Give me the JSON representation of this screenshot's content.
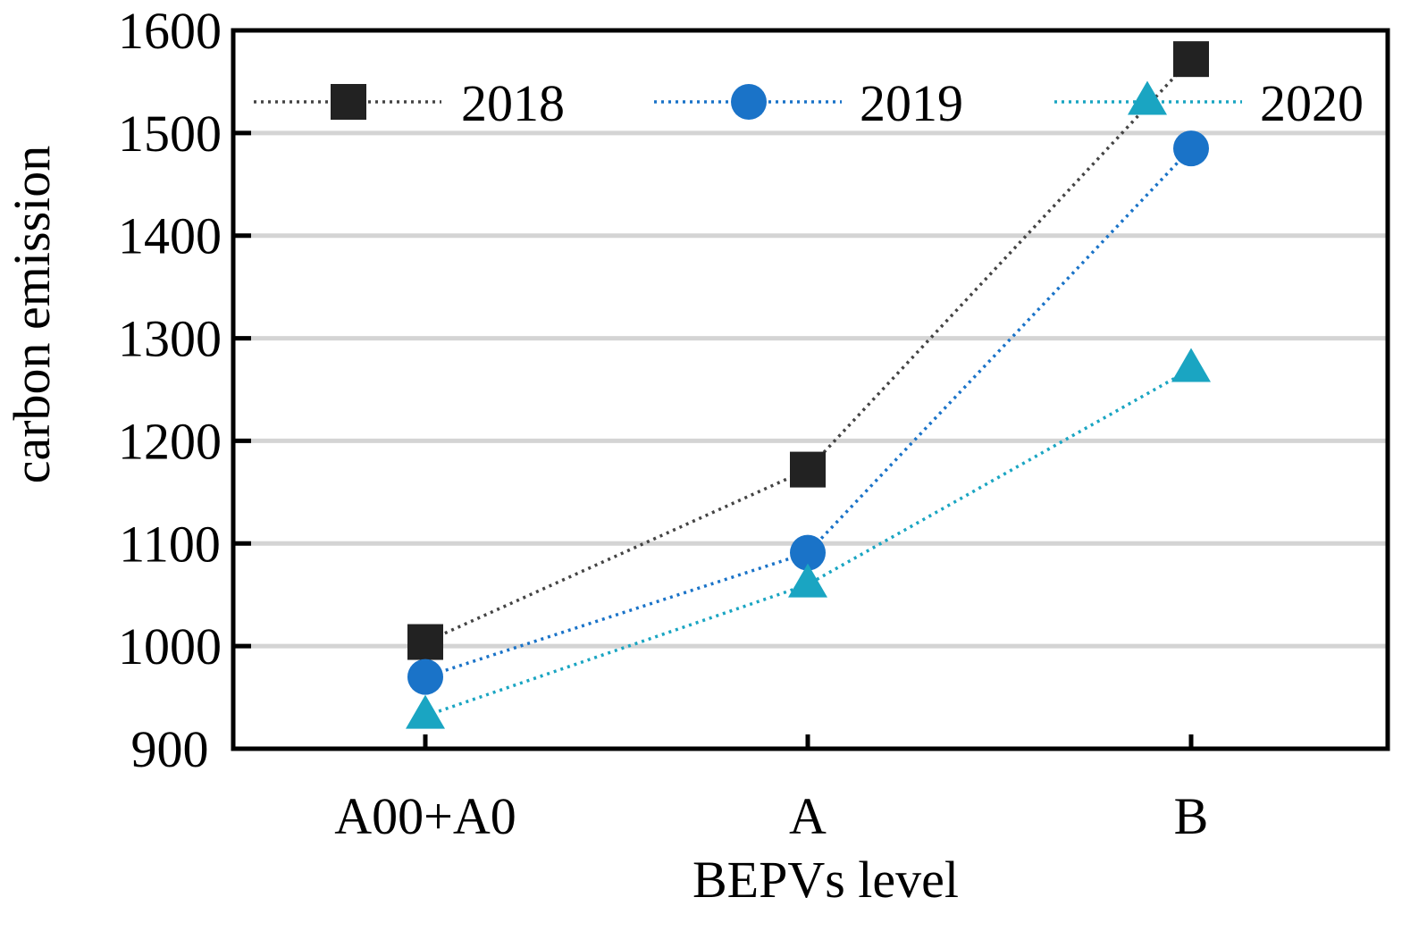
{
  "chart_data": {
    "type": "line",
    "title": "",
    "xlabel": "BEPVs level",
    "ylabel": "carbon emission",
    "categories": [
      "A00+A0",
      "A",
      "B"
    ],
    "ylim": [
      900,
      1600
    ],
    "yticks": [
      900,
      1000,
      1100,
      1200,
      1300,
      1400,
      1500,
      1600
    ],
    "grid": "horizontal",
    "legend_position": "top",
    "series": [
      {
        "name": "2018",
        "marker": "square",
        "color": "#222222",
        "line_color": "#444444",
        "values": [
          1004,
          1172,
          1572
        ]
      },
      {
        "name": "2019",
        "marker": "circle",
        "color": "#1a73c8",
        "line_color": "#1a73c8",
        "values": [
          970,
          1091,
          1485
        ]
      },
      {
        "name": "2020",
        "marker": "triangle",
        "color": "#1aa5c2",
        "line_color": "#1aa5c2",
        "values": [
          932,
          1060,
          1270
        ]
      }
    ]
  }
}
